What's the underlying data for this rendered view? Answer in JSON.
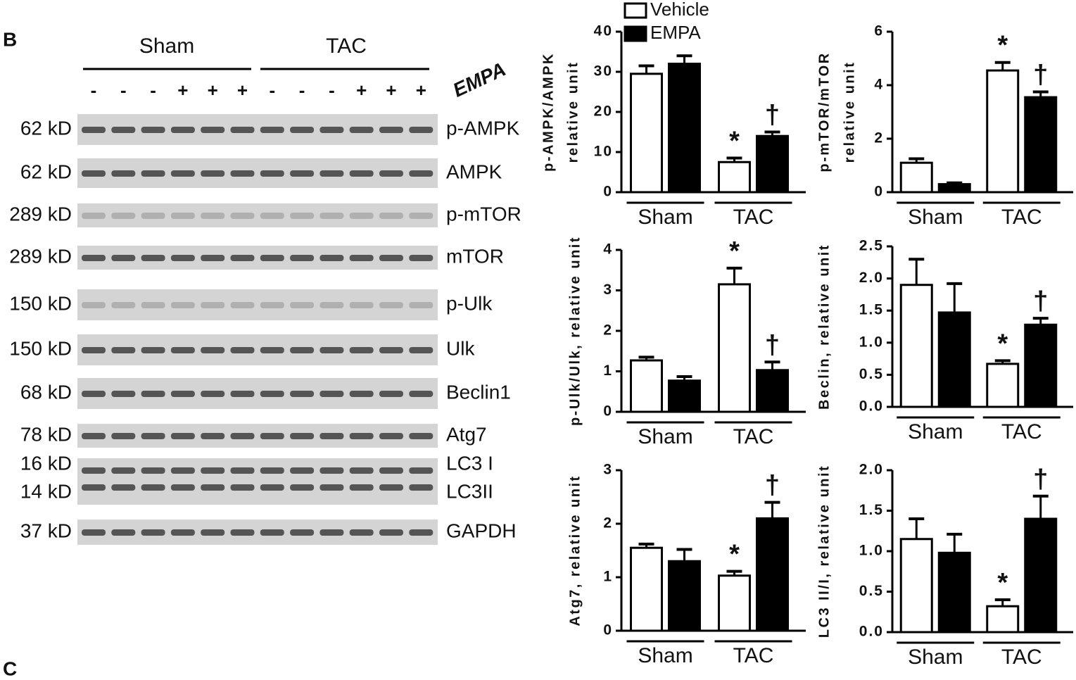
{
  "panel_labels": [
    "B",
    "C"
  ],
  "blot": {
    "groups": [
      "Sham",
      "TAC"
    ],
    "treatment": "EMPA",
    "lane_signs": [
      "-",
      "-",
      "-",
      "+",
      "+",
      "+",
      "-",
      "-",
      "-",
      "+",
      "+",
      "+"
    ],
    "rows": [
      {
        "sizes": [
          "62 kD"
        ],
        "names": [
          "p-AMPK"
        ]
      },
      {
        "sizes": [
          "62 kD"
        ],
        "names": [
          "AMPK"
        ]
      },
      {
        "sizes": [
          "289 kD"
        ],
        "names": [
          "p-mTOR"
        ]
      },
      {
        "sizes": [
          "289 kD"
        ],
        "names": [
          "mTOR"
        ]
      },
      {
        "sizes": [
          "150 kD"
        ],
        "names": [
          "p-Ulk"
        ]
      },
      {
        "sizes": [
          "150 kD"
        ],
        "names": [
          "Ulk"
        ]
      },
      {
        "sizes": [
          "68 kD"
        ],
        "names": [
          "Beclin1"
        ]
      },
      {
        "sizes": [
          "78 kD"
        ],
        "names": [
          "Atg7"
        ]
      },
      {
        "sizes": [
          "16 kD",
          "14 kD"
        ],
        "names": [
          "LC3 I",
          "LC3II"
        ]
      },
      {
        "sizes": [
          "37 kD"
        ],
        "names": [
          "GAPDH"
        ]
      }
    ]
  },
  "chart_data": [
    {
      "type": "bar",
      "ylabel": [
        "p-AMPK/AMPK",
        "relative unit"
      ],
      "categories": [
        "Sham",
        "TAC"
      ],
      "legend": "top",
      "series": [
        {
          "name": "Vehicle",
          "color": "#ffffff",
          "values": [
            29.5,
            7.5
          ],
          "errors": [
            2,
            1
          ],
          "marker_labels": [
            null,
            "*"
          ]
        },
        {
          "name": "EMPA",
          "color": "#000000",
          "values": [
            32,
            14
          ],
          "errors": [
            2,
            1
          ],
          "marker_labels": [
            null,
            "†"
          ]
        }
      ],
      "ylim": [
        0,
        40
      ],
      "yticks": [
        0,
        10,
        20,
        30,
        40
      ]
    },
    {
      "type": "bar",
      "ylabel": [
        "p-mTOR/mTOR",
        "relative unit"
      ],
      "categories": [
        "Sham",
        "TAC"
      ],
      "series": [
        {
          "color": "#ffffff",
          "values": [
            1.1,
            4.55
          ],
          "errors": [
            0.15,
            0.3
          ],
          "marker_labels": [
            null,
            "*"
          ]
        },
        {
          "color": "#000000",
          "values": [
            0.3,
            3.55
          ],
          "errors": [
            0.05,
            0.2
          ],
          "marker_labels": [
            null,
            "†"
          ]
        }
      ],
      "ylim": [
        0,
        6
      ],
      "yticks": [
        0,
        2,
        4,
        6
      ]
    },
    {
      "type": "bar",
      "ylabel": [
        "p-Ulk/Ulk, relative unit"
      ],
      "categories": [
        "Sham",
        "TAC"
      ],
      "series": [
        {
          "color": "#ffffff",
          "values": [
            1.27,
            3.15
          ],
          "errors": [
            0.08,
            0.4
          ],
          "marker_labels": [
            null,
            "*"
          ]
        },
        {
          "color": "#000000",
          "values": [
            0.77,
            1.03
          ],
          "errors": [
            0.1,
            0.2
          ],
          "marker_labels": [
            null,
            "†"
          ]
        }
      ],
      "ylim": [
        0,
        4
      ],
      "yticks": [
        0,
        1,
        2,
        3,
        4
      ]
    },
    {
      "type": "bar",
      "ylabel": [
        "Beclin, relative unit"
      ],
      "categories": [
        "Sham",
        "TAC"
      ],
      "series": [
        {
          "color": "#ffffff",
          "values": [
            1.9,
            0.67
          ],
          "errors": [
            0.4,
            0.05
          ],
          "marker_labels": [
            null,
            "*"
          ]
        },
        {
          "color": "#000000",
          "values": [
            1.47,
            1.28
          ],
          "errors": [
            0.45,
            0.1
          ],
          "marker_labels": [
            null,
            "†"
          ]
        }
      ],
      "ylim": [
        0,
        2.5
      ],
      "yticks": [
        {
          "value": 0,
          "label": "0.0"
        },
        0.5,
        {
          "value": 1,
          "label": "1.0"
        },
        1.5,
        {
          "value": 2,
          "label": "2.0"
        },
        2.5
      ]
    },
    {
      "type": "bar",
      "ylabel": [
        "Atg7, relative unit"
      ],
      "categories": [
        "Sham",
        "TAC"
      ],
      "series": [
        {
          "color": "#ffffff",
          "values": [
            1.55,
            1.03
          ],
          "errors": [
            0.07,
            0.08
          ],
          "marker_labels": [
            null,
            "*"
          ]
        },
        {
          "color": "#000000",
          "values": [
            1.3,
            2.1
          ],
          "errors": [
            0.22,
            0.3
          ],
          "marker_labels": [
            null,
            "†"
          ]
        }
      ],
      "ylim": [
        0,
        3
      ],
      "yticks": [
        0,
        1,
        2,
        3
      ]
    },
    {
      "type": "bar",
      "ylabel": [
        "LC3 II/I, relative unit"
      ],
      "categories": [
        "Sham",
        "TAC"
      ],
      "series": [
        {
          "color": "#ffffff",
          "values": [
            1.15,
            0.32
          ],
          "errors": [
            0.25,
            0.08
          ],
          "marker_labels": [
            null,
            "*"
          ]
        },
        {
          "color": "#000000",
          "values": [
            0.98,
            1.4
          ],
          "errors": [
            0.23,
            0.28
          ],
          "marker_labels": [
            null,
            "†"
          ]
        }
      ],
      "ylim": [
        0,
        2.0
      ],
      "yticks": [
        {
          "value": 0,
          "label": "0.0"
        },
        0.5,
        {
          "value": 1,
          "label": "1.0"
        },
        1.5,
        {
          "value": 2,
          "label": "2.0"
        }
      ]
    }
  ]
}
